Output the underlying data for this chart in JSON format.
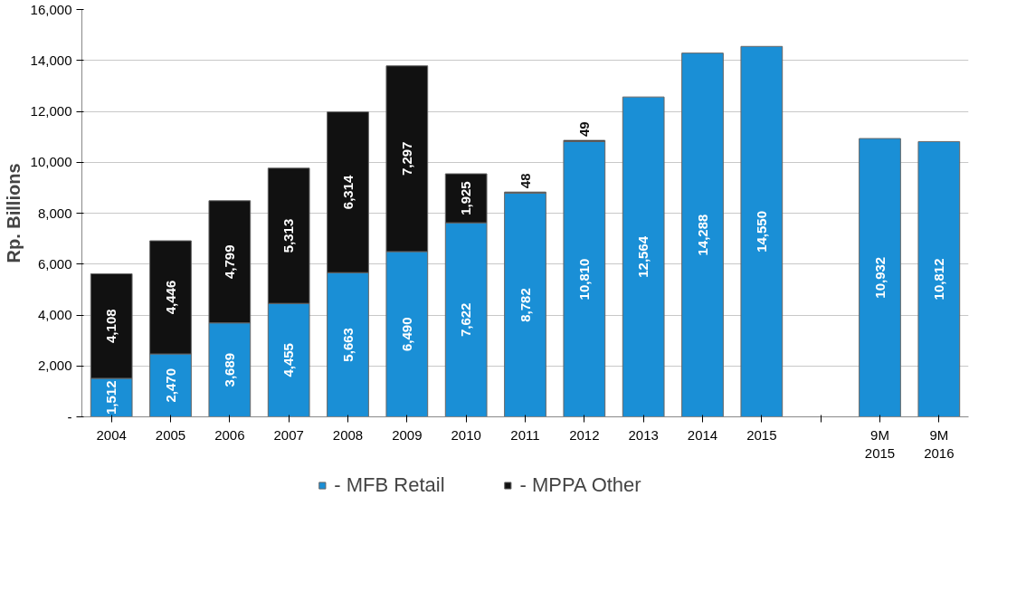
{
  "chart_data": {
    "type": "bar",
    "stacked": true,
    "ylabel": "Rp. Billions",
    "categories": [
      "2004",
      "2005",
      "2006",
      "2007",
      "2008",
      "2009",
      "2010",
      "2011",
      "2012",
      "2013",
      "2014",
      "2015",
      null,
      "9M\n2015",
      "9M\n2016"
    ],
    "series": [
      {
        "name": "- MFB Retail",
        "color": "#1a8fd6",
        "values": [
          1512,
          2470,
          3689,
          4455,
          5663,
          6490,
          7622,
          8782,
          10810,
          12564,
          14288,
          14550,
          null,
          10932,
          10812
        ],
        "value_labels": [
          "1,512",
          "2,470",
          "3,689",
          "4,455",
          "5,663",
          "6,490",
          "7,622",
          "8,782",
          "10,810",
          "12,564",
          "14,288",
          "14,550",
          null,
          "10,932",
          "10,812"
        ]
      },
      {
        "name": "- MPPA Other",
        "color": "#111111",
        "values": [
          4108,
          4446,
          4799,
          5313,
          6314,
          7297,
          1925,
          48,
          49,
          null,
          null,
          null,
          null,
          null,
          null
        ],
        "value_labels": [
          "4,108",
          "4,446",
          "4,799",
          "5,313",
          "6,314",
          "7,297",
          "1,925",
          "48",
          "49",
          null,
          null,
          null,
          null,
          null,
          null
        ]
      }
    ],
    "ylim": [
      0,
      16000
    ],
    "yticks": [
      {
        "value": 0,
        "label": "-"
      },
      {
        "value": 2000,
        "label": "2,000"
      },
      {
        "value": 4000,
        "label": "4,000"
      },
      {
        "value": 6000,
        "label": "6,000"
      },
      {
        "value": 8000,
        "label": "8,000"
      },
      {
        "value": 10000,
        "label": "10,000"
      },
      {
        "value": 12000,
        "label": "12,000"
      },
      {
        "value": 14000,
        "label": "14,000"
      },
      {
        "value": 16000,
        "label": "16,000"
      }
    ],
    "grid": "y",
    "legend": "bottom"
  }
}
